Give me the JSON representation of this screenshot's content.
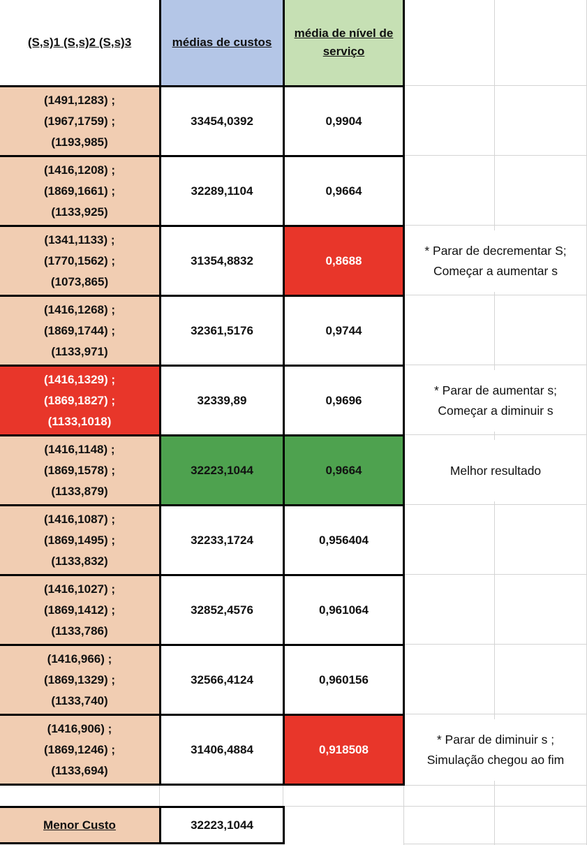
{
  "header": {
    "col1": "(S,s)1 (S,s)2 (S,s)3",
    "col2": "médias de custos",
    "col3": "média de nível de serviço"
  },
  "rows": [
    {
      "params": "(1491,1283) ;\n(1967,1759) ;\n(1193,985)",
      "cost": "33454,0392",
      "service": "0,9904",
      "note": ""
    },
    {
      "params": "(1416,1208) ;\n(1869,1661) ;\n(1133,925)",
      "cost": "32289,1104",
      "service": "0,9664",
      "note": ""
    },
    {
      "params": "(1341,1133) ;\n(1770,1562) ;\n(1073,865)",
      "cost": "31354,8832",
      "service": "0,8688",
      "note": "* Parar de decrementar S;\nComeçar a aumentar s"
    },
    {
      "params": "(1416,1268) ;\n(1869,1744) ;\n(1133,971)",
      "cost": "32361,5176",
      "service": "0,9744",
      "note": ""
    },
    {
      "params": "(1416,1329) ;\n(1869,1827) ;\n(1133,1018)",
      "cost": "32339,89",
      "service": "0,9696",
      "note": "* Parar de aumentar s;\nComeçar a diminuir s"
    },
    {
      "params": "(1416,1148) ;\n(1869,1578) ;\n(1133,879)",
      "cost": "32223,1044",
      "service": "0,9664",
      "note": "Melhor resultado"
    },
    {
      "params": "(1416,1087) ;\n(1869,1495) ;\n(1133,832)",
      "cost": "32233,1724",
      "service": "0,956404",
      "note": ""
    },
    {
      "params": "(1416,1027) ;\n(1869,1412) ;\n(1133,786)",
      "cost": "32852,4576",
      "service": "0,961064",
      "note": ""
    },
    {
      "params": "(1416,966) ;\n(1869,1329) ;\n(1133,740)",
      "cost": "32566,4124",
      "service": "0,960156",
      "note": ""
    },
    {
      "params": "(1416,906) ;\n(1869,1246) ;\n(1133,694)",
      "cost": "31406,4884",
      "service": "0,918508",
      "note": "* Parar de diminuir s ;\nSimulação chegou ao fim"
    }
  ],
  "summary": {
    "label": "Menor Custo",
    "value": "32223,1044"
  },
  "colors": {
    "params_bg": "#f1cdb2",
    "cost_header_bg": "#b4c6e7",
    "service_header_bg": "#c6e0b4",
    "alert_red": "#e8362a",
    "best_green": "#4ea24f"
  }
}
